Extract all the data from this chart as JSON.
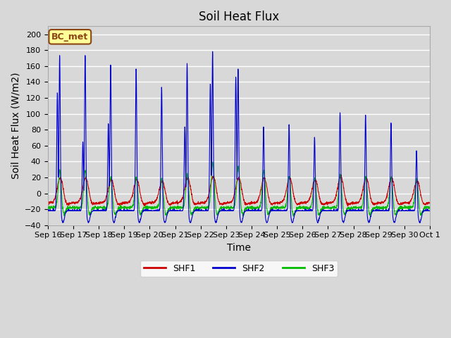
{
  "title": "Soil Heat Flux",
  "xlabel": "Time",
  "ylabel": "Soil Heat Flux (W/m2)",
  "ylim": [
    -40,
    210
  ],
  "yticks": [
    -40,
    -20,
    0,
    20,
    40,
    60,
    80,
    100,
    120,
    140,
    160,
    180,
    200
  ],
  "x_tick_labels": [
    "Sep 16",
    "Sep 17",
    "Sep 18",
    "Sep 19",
    "Sep 20",
    "Sep 21",
    "Sep 22",
    "Sep 23",
    "Sep 24",
    "Sep 25",
    "Sep 26",
    "Sep 27",
    "Sep 28",
    "Sep 29",
    "Sep 30",
    "Oct 1"
  ],
  "annotation_text": "BC_met",
  "annotation_bg": "#FFFF99",
  "annotation_border": "#8B4513",
  "shf1_color": "#CC0000",
  "shf2_color": "#0000CC",
  "shf3_color": "#00BB00",
  "bg_color": "#D8D8D8",
  "plot_bg": "#D8D8D8",
  "grid_color": "#FFFFFF",
  "n_days": 15,
  "pts_per_day": 144,
  "title_fontsize": 12,
  "axis_fontsize": 10,
  "tick_fontsize": 8,
  "shf2_peaks": [
    175,
    175,
    163,
    158,
    135,
    165,
    180,
    158,
    85,
    88,
    72,
    103,
    100,
    90,
    55
  ],
  "shf1_peaks": [
    20,
    20,
    18,
    18,
    16,
    20,
    22,
    20,
    20,
    20,
    18,
    22,
    20,
    20,
    16
  ],
  "shf3_peaks": [
    30,
    30,
    22,
    22,
    20,
    25,
    40,
    35,
    30,
    22,
    20,
    25,
    22,
    22,
    20
  ],
  "shf2_secondary_peaks": [
    127,
    65,
    88,
    0,
    0,
    84,
    138,
    147,
    0,
    0,
    0,
    0,
    0,
    0,
    0
  ],
  "shf1_base": -12,
  "shf2_base": -22,
  "shf3_base": -18
}
